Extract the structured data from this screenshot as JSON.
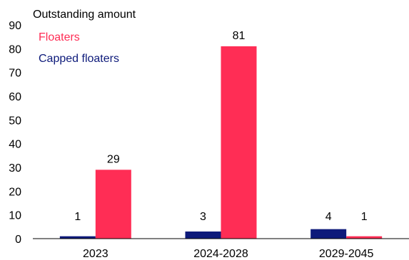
{
  "chart_data": {
    "type": "bar",
    "ylabel": "Outstanding amount",
    "categories": [
      "2023",
      "2024-2028",
      "2029-2045"
    ],
    "series": [
      {
        "name": "Capped floaters",
        "values": [
          1,
          3,
          4
        ],
        "color": "#0d1a7a"
      },
      {
        "name": "Floaters",
        "values": [
          29,
          81,
          1
        ],
        "color": "#ff2d55"
      }
    ],
    "ylim": [
      0,
      90
    ],
    "yticks": [
      0,
      10,
      20,
      30,
      40,
      50,
      60,
      70,
      80,
      90
    ],
    "legend_order": [
      "Floaters",
      "Capped floaters"
    ],
    "legend_position": "top-left",
    "grid": false
  }
}
